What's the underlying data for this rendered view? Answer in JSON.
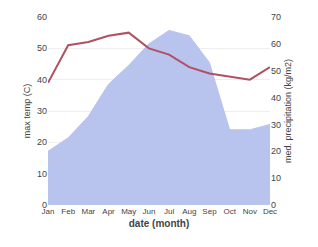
{
  "chart_data": {
    "type": "line",
    "categories": [
      "Jan",
      "Feb",
      "Mar",
      "Apr",
      "May",
      "Jun",
      "Jul",
      "Aug",
      "Sep",
      "Oct",
      "Nov",
      "Dec"
    ],
    "series": [
      {
        "type": "line",
        "color": "#b05060",
        "values": [
          39,
          51,
          52,
          54,
          55,
          50,
          48,
          44,
          42,
          41,
          40,
          44
        ]
      },
      {
        "type": "area",
        "color": "#b8c4ee",
        "axis": "y2",
        "values": [
          20,
          25,
          33,
          45,
          52,
          60,
          65,
          63,
          53,
          28,
          28,
          30
        ]
      }
    ],
    "xlabel": "date (month)",
    "ylabel": "max temp (C)",
    "y2label": "med. precipitation (kg/m2)",
    "ylim": [
      0,
      60
    ],
    "yticks": [
      0,
      10,
      20,
      30,
      40,
      50,
      60
    ],
    "y2lim": [
      0,
      70
    ],
    "y2ticks": [
      0,
      10,
      20,
      30,
      40,
      50,
      60,
      70
    ],
    "grid": true
  }
}
